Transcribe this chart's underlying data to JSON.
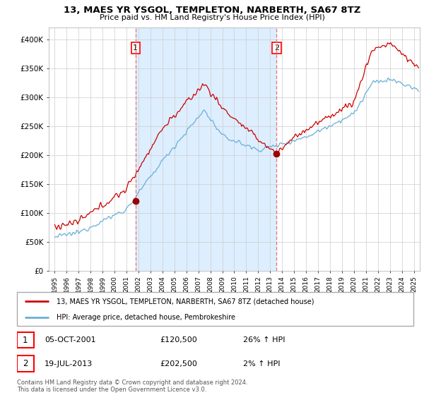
{
  "title": "13, MAES YR YSGOL, TEMPLETON, NARBERTH, SA67 8TZ",
  "subtitle": "Price paid vs. HM Land Registry's House Price Index (HPI)",
  "footer": "Contains HM Land Registry data © Crown copyright and database right 2024.\nThis data is licensed under the Open Government Licence v3.0.",
  "legend_line1": "13, MAES YR YSGOL, TEMPLETON, NARBERTH, SA67 8TZ (detached house)",
  "legend_line2": "HPI: Average price, detached house, Pembrokeshire",
  "transaction1_label": "1",
  "transaction1_date": "05-OCT-2001",
  "transaction1_price": "£120,500",
  "transaction1_hpi": "26% ↑ HPI",
  "transaction2_label": "2",
  "transaction2_date": "19-JUL-2013",
  "transaction2_price": "£202,500",
  "transaction2_hpi": "2% ↑ HPI",
  "marker1_x": 2001.75,
  "marker1_y": 120500,
  "marker2_x": 2013.54,
  "marker2_y": 202500,
  "vline1_x": 2001.75,
  "vline2_x": 2013.54,
  "ylim": [
    0,
    420000
  ],
  "xlim_start": 1994.5,
  "xlim_end": 2025.5,
  "yticks": [
    0,
    50000,
    100000,
    150000,
    200000,
    250000,
    300000,
    350000,
    400000
  ],
  "ytick_labels": [
    "£0",
    "£50K",
    "£100K",
    "£150K",
    "£200K",
    "£250K",
    "£300K",
    "£350K",
    "£400K"
  ],
  "xtick_years": [
    1995,
    1996,
    1997,
    1998,
    1999,
    2000,
    2001,
    2002,
    2003,
    2004,
    2005,
    2006,
    2007,
    2008,
    2009,
    2010,
    2011,
    2012,
    2013,
    2014,
    2015,
    2016,
    2017,
    2018,
    2019,
    2020,
    2021,
    2022,
    2023,
    2024,
    2025
  ],
  "hpi_color": "#6baed6",
  "price_color": "#cc0000",
  "vline_color": "#e08080",
  "shade_color": "#ddeeff",
  "background_color": "#ffffff",
  "grid_color": "#cccccc"
}
